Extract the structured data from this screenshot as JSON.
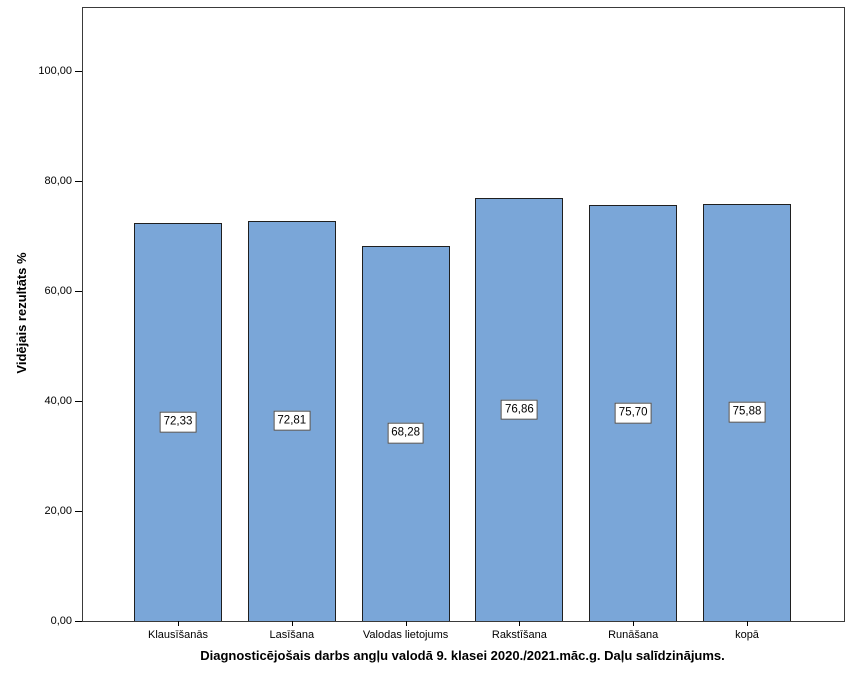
{
  "chart_data": {
    "type": "bar",
    "title": "Diagnosticējošais darbs angļu valodā 9. klasei 2020./2021.māc.g. Daļu salīdzinājums.",
    "xlabel": "",
    "ylabel": "Vidējais rezultāts %",
    "categories": [
      "Klausīšanās",
      "Lasīšana",
      "Valodas lietojums",
      "Rakstīšana",
      "Runāšana",
      "kopā"
    ],
    "values": [
      72.33,
      72.81,
      68.28,
      76.86,
      75.7,
      75.88
    ],
    "value_labels": [
      "72,33",
      "72,81",
      "68,28",
      "76,86",
      "75,70",
      "75,88"
    ],
    "y_ticks": [
      {
        "value": 0,
        "label": "0,00"
      },
      {
        "value": 20,
        "label": "20,00"
      },
      {
        "value": 40,
        "label": "40,00"
      },
      {
        "value": 60,
        "label": "60,00"
      },
      {
        "value": 80,
        "label": "80,00"
      },
      {
        "value": 100,
        "label": "100,00"
      }
    ],
    "ylim": [
      0,
      111.5
    ],
    "grid": false,
    "legend": null,
    "colors": {
      "bar_fill": "#7aa6d8",
      "bar_border": "#1f1f1f",
      "frame": "#3a3a3a",
      "background": "#ffffff",
      "text": "#000000"
    }
  }
}
